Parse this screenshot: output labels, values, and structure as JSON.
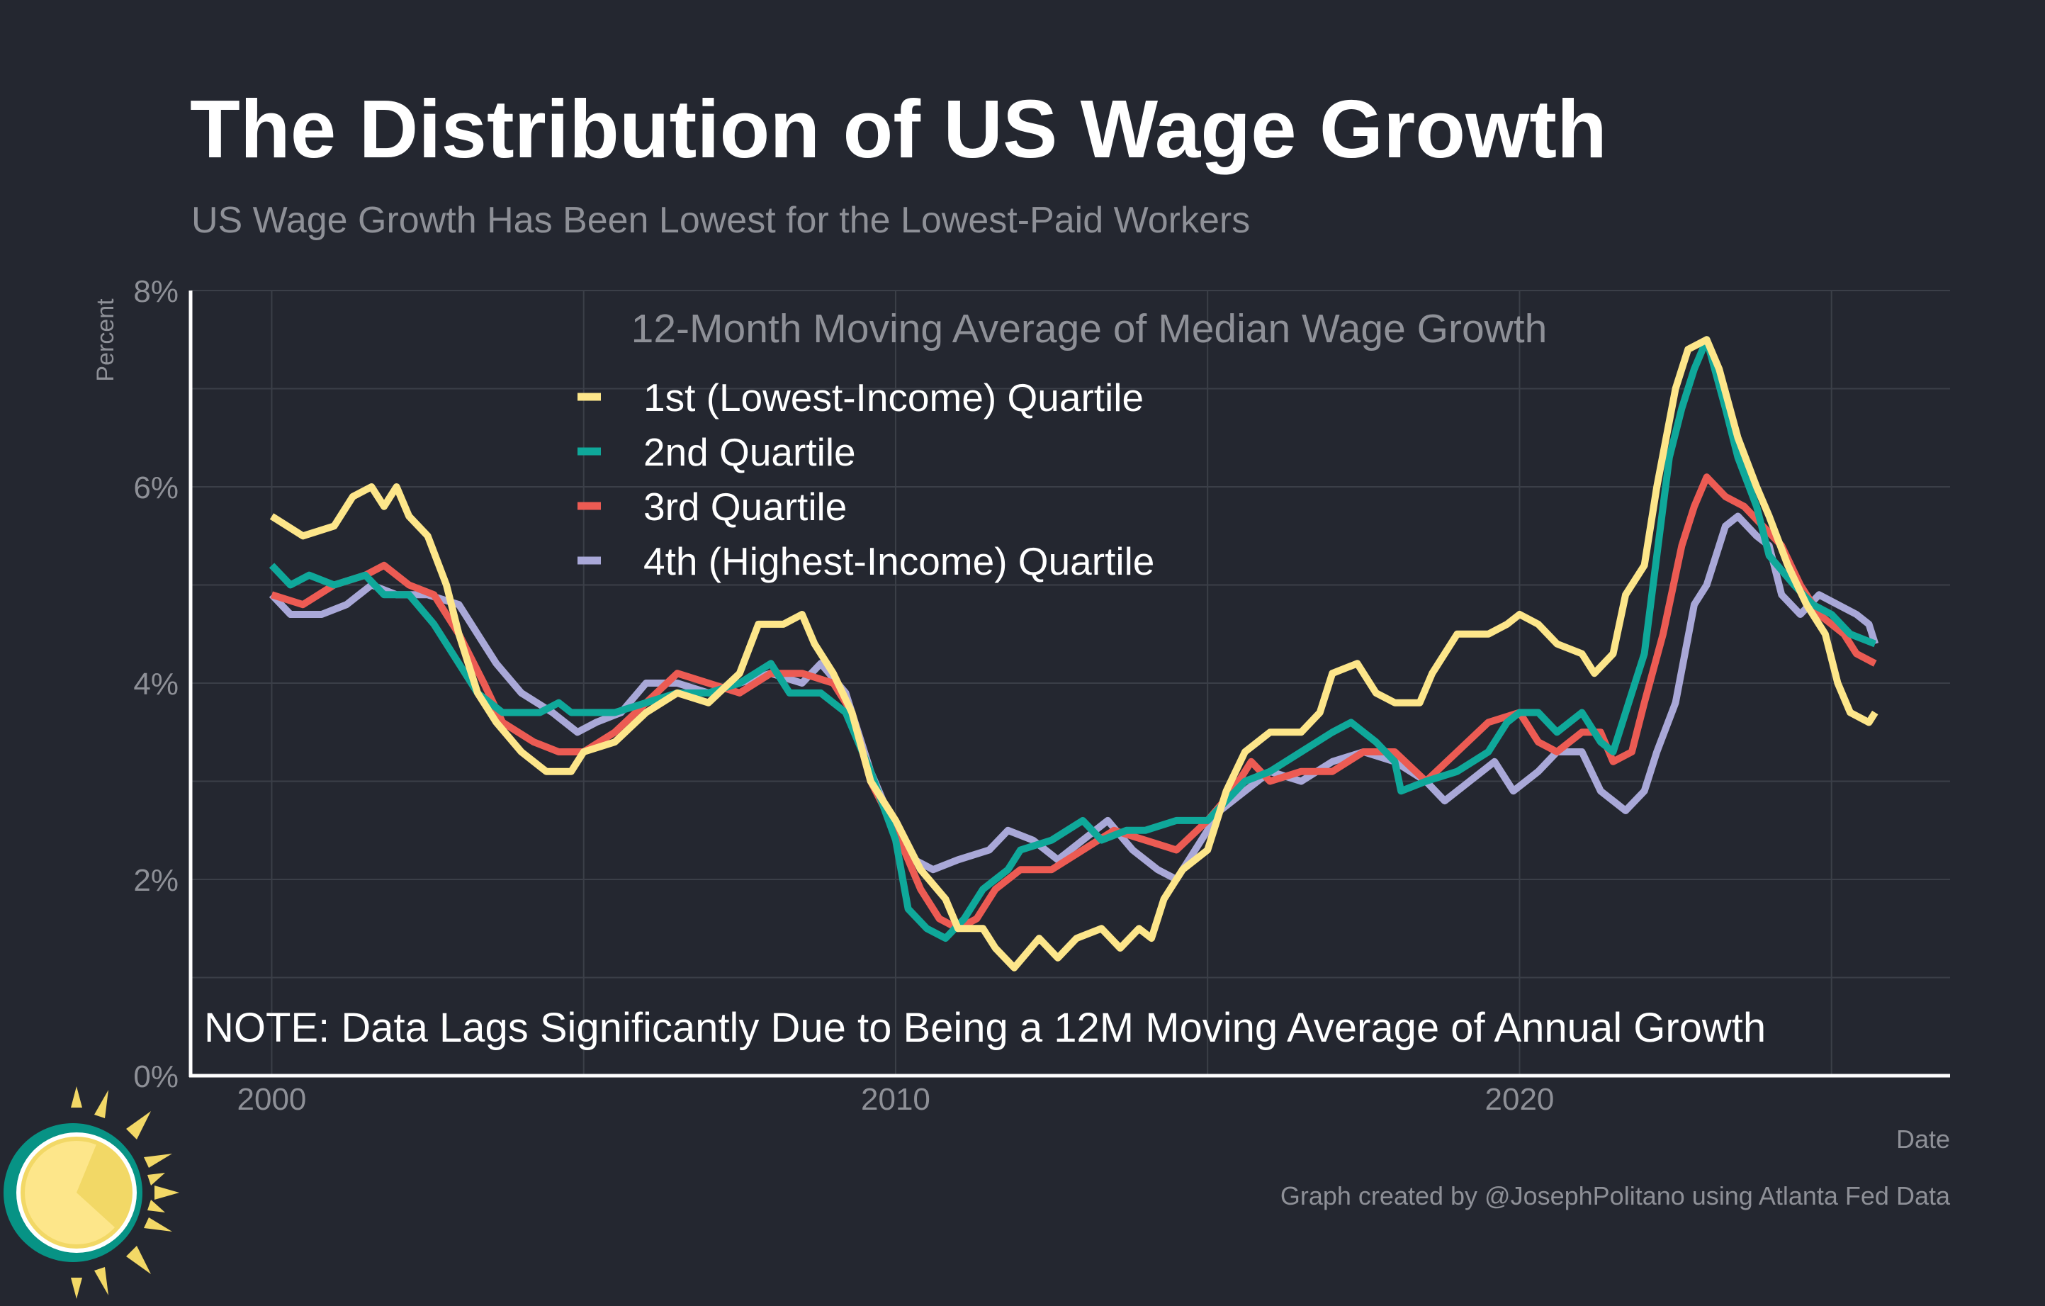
{
  "header": {
    "title": "The Distribution of US Wage Growth",
    "subtitle": "US Wage Growth Has Been Lowest for the Lowest-Paid Workers"
  },
  "footer": {
    "credit": "Graph created by @JosephPolitano using Atlanta Fed Data"
  },
  "colors": {
    "background": "#242730",
    "grid": "#3b3f48",
    "axis": "#ffffff",
    "muted_text": "#8e9097"
  },
  "chart_data": {
    "type": "line",
    "title": "12-Month Moving Average of Median Wage Growth",
    "xlabel": "Date",
    "ylabel": "Percent",
    "xlim": [
      1998.7,
      2026.9
    ],
    "ylim": [
      0,
      8
    ],
    "x_ticks": [
      {
        "value": 2000,
        "label": "2000"
      },
      {
        "value": 2010,
        "label": "2010"
      },
      {
        "value": 2020,
        "label": "2020"
      }
    ],
    "y_ticks": [
      {
        "value": 0,
        "label": "0%"
      },
      {
        "value": 2,
        "label": "2%"
      },
      {
        "value": 4,
        "label": "4%"
      },
      {
        "value": 6,
        "label": "6%"
      },
      {
        "value": 8,
        "label": "8%"
      }
    ],
    "grid": true,
    "legend_position": "top-center",
    "annotation": "NOTE: Data Lags Significantly Due to Being a 12M Moving Average of Annual Growth",
    "series": [
      {
        "name": "1st (Lowest-Income) Quartile",
        "color": "#fde68a",
        "x": [
          2000,
          2000.5,
          2001,
          2001.3,
          2001.6,
          2001.8,
          2002.0,
          2002.2,
          2002.5,
          2002.8,
          2003.0,
          2003.3,
          2003.6,
          2004,
          2004.4,
          2004.8,
          2005,
          2005.5,
          2006,
          2006.5,
          2007,
          2007.5,
          2007.8,
          2008.2,
          2008.5,
          2008.7,
          2009,
          2009.3,
          2009.6,
          2010,
          2010.4,
          2010.8,
          2011,
          2011.4,
          2011.6,
          2011.9,
          2012.3,
          2012.6,
          2012.9,
          2013.3,
          2013.6,
          2013.9,
          2014.1,
          2014.3,
          2014.6,
          2015,
          2015.3,
          2015.6,
          2016,
          2016.5,
          2016.8,
          2017,
          2017.4,
          2017.7,
          2018,
          2018.4,
          2018.6,
          2019,
          2019.5,
          2019.8,
          2020,
          2020.3,
          2020.6,
          2021,
          2021.2,
          2021.5,
          2021.7,
          2022,
          2022.2,
          2022.5,
          2022.7,
          2023,
          2023.2,
          2023.5,
          2023.8,
          2024,
          2024.3,
          2024.6,
          2024.9,
          2025.1,
          2025.3,
          2025.6,
          2025.7
        ],
        "y": [
          5.7,
          5.5,
          5.6,
          5.9,
          6.0,
          5.8,
          6.0,
          5.7,
          5.5,
          5.0,
          4.5,
          3.9,
          3.6,
          3.3,
          3.1,
          3.1,
          3.3,
          3.4,
          3.7,
          3.9,
          3.8,
          4.1,
          4.6,
          4.6,
          4.7,
          4.4,
          4.1,
          3.7,
          3.0,
          2.6,
          2.1,
          1.8,
          1.5,
          1.5,
          1.3,
          1.1,
          1.4,
          1.2,
          1.4,
          1.5,
          1.3,
          1.5,
          1.4,
          1.8,
          2.1,
          2.3,
          2.9,
          3.3,
          3.5,
          3.5,
          3.7,
          4.1,
          4.2,
          3.9,
          3.8,
          3.8,
          4.1,
          4.5,
          4.5,
          4.6,
          4.7,
          4.6,
          4.4,
          4.3,
          4.1,
          4.3,
          4.9,
          5.2,
          6.0,
          7.0,
          7.4,
          7.5,
          7.2,
          6.5,
          6.0,
          5.7,
          5.2,
          4.8,
          4.5,
          4.0,
          3.7,
          3.6,
          3.7
        ]
      },
      {
        "name": "2nd Quartile",
        "color": "#0fa89a",
        "x": [
          2000,
          2000.3,
          2000.6,
          2001,
          2001.5,
          2001.8,
          2002.2,
          2002.6,
          2003,
          2003.3,
          2003.7,
          2004.3,
          2004.6,
          2004.8,
          2005.5,
          2006,
          2006.5,
          2007,
          2007.5,
          2008,
          2008.3,
          2008.8,
          2009.2,
          2009.6,
          2010,
          2010.2,
          2010.5,
          2010.8,
          2011.1,
          2011.4,
          2011.8,
          2012,
          2012.5,
          2013,
          2013.3,
          2013.7,
          2014,
          2014.5,
          2015,
          2015.3,
          2015.6,
          2016,
          2016.5,
          2017,
          2017.3,
          2017.7,
          2018,
          2018.1,
          2018.5,
          2019,
          2019.5,
          2019.8,
          2020,
          2020.3,
          2020.6,
          2021,
          2021.3,
          2021.5,
          2021.8,
          2022,
          2022.2,
          2022.4,
          2022.6,
          2022.8,
          2023,
          2023.3,
          2023.5,
          2023.8,
          2024,
          2024.4,
          2024.7,
          2025,
          2025.3,
          2025.7
        ],
        "y": [
          5.2,
          5.0,
          5.1,
          5.0,
          5.1,
          4.9,
          4.9,
          4.6,
          4.2,
          3.9,
          3.7,
          3.7,
          3.8,
          3.7,
          3.7,
          3.8,
          3.9,
          3.9,
          4.0,
          4.2,
          3.9,
          3.9,
          3.7,
          3.1,
          2.4,
          1.7,
          1.5,
          1.4,
          1.6,
          1.9,
          2.1,
          2.3,
          2.4,
          2.6,
          2.4,
          2.5,
          2.5,
          2.6,
          2.6,
          2.8,
          3.0,
          3.1,
          3.3,
          3.5,
          3.6,
          3.4,
          3.2,
          2.9,
          3.0,
          3.1,
          3.3,
          3.6,
          3.7,
          3.7,
          3.5,
          3.7,
          3.4,
          3.3,
          3.9,
          4.3,
          5.3,
          6.3,
          6.8,
          7.2,
          7.5,
          6.8,
          6.3,
          5.8,
          5.3,
          5.0,
          4.8,
          4.7,
          4.5,
          4.4
        ]
      },
      {
        "name": "3rd Quartile",
        "color": "#ec5b53",
        "x": [
          2000,
          2000.5,
          2001,
          2001.5,
          2001.8,
          2002.2,
          2002.6,
          2003,
          2003.4,
          2003.7,
          2004.2,
          2004.6,
          2005,
          2005.5,
          2006,
          2006.5,
          2007,
          2007.5,
          2008,
          2008.5,
          2009,
          2009.3,
          2009.6,
          2010,
          2010.4,
          2010.7,
          2011,
          2011.3,
          2011.6,
          2012,
          2012.5,
          2013,
          2013.5,
          2014,
          2014.5,
          2015,
          2015.4,
          2015.7,
          2016,
          2016.5,
          2017,
          2017.5,
          2018,
          2018.5,
          2019,
          2019.5,
          2020,
          2020.3,
          2020.6,
          2021,
          2021.3,
          2021.5,
          2021.8,
          2022,
          2022.3,
          2022.6,
          2022.8,
          2023,
          2023.3,
          2023.6,
          2023.9,
          2024.2,
          2024.5,
          2024.8,
          2025.2,
          2025.4,
          2025.7
        ],
        "y": [
          4.9,
          4.8,
          5.0,
          5.1,
          5.2,
          5.0,
          4.9,
          4.5,
          4.0,
          3.6,
          3.4,
          3.3,
          3.3,
          3.5,
          3.8,
          4.1,
          4.0,
          3.9,
          4.1,
          4.1,
          4.0,
          3.7,
          3.0,
          2.5,
          1.9,
          1.6,
          1.5,
          1.6,
          1.9,
          2.1,
          2.1,
          2.3,
          2.5,
          2.4,
          2.3,
          2.6,
          2.9,
          3.2,
          3.0,
          3.1,
          3.1,
          3.3,
          3.3,
          3.0,
          3.3,
          3.6,
          3.7,
          3.4,
          3.3,
          3.5,
          3.5,
          3.2,
          3.3,
          3.8,
          4.5,
          5.4,
          5.8,
          6.1,
          5.9,
          5.8,
          5.6,
          5.4,
          5.0,
          4.7,
          4.5,
          4.3,
          4.2
        ]
      },
      {
        "name": "4th (Highest-Income) Quartile",
        "color": "#a9a8d8",
        "x": [
          2000,
          2000.3,
          2000.8,
          2001.2,
          2001.6,
          2002,
          2002.5,
          2003,
          2003.3,
          2003.6,
          2004,
          2004.5,
          2004.9,
          2005.2,
          2005.6,
          2006,
          2006.5,
          2007,
          2007.5,
          2008,
          2008.5,
          2008.8,
          2009.2,
          2009.6,
          2010,
          2010.3,
          2010.6,
          2011,
          2011.5,
          2011.8,
          2012.2,
          2012.6,
          2013,
          2013.4,
          2013.8,
          2014.2,
          2014.5,
          2014.8,
          2015.2,
          2015.6,
          2016,
          2016.5,
          2017,
          2017.5,
          2018,
          2018.5,
          2018.8,
          2019.2,
          2019.6,
          2019.9,
          2020.3,
          2020.6,
          2021,
          2021.3,
          2021.7,
          2022,
          2022.2,
          2022.5,
          2022.8,
          2023,
          2023.3,
          2023.5,
          2023.8,
          2024,
          2024.2,
          2024.5,
          2024.8,
          2025.1,
          2025.4,
          2025.6,
          2025.7
        ],
        "y": [
          4.9,
          4.7,
          4.7,
          4.8,
          5.0,
          4.9,
          4.9,
          4.8,
          4.5,
          4.2,
          3.9,
          3.7,
          3.5,
          3.6,
          3.7,
          4.0,
          4.0,
          3.9,
          4.0,
          4.1,
          4.0,
          4.2,
          3.9,
          3.1,
          2.5,
          2.2,
          2.1,
          2.2,
          2.3,
          2.5,
          2.4,
          2.2,
          2.4,
          2.6,
          2.3,
          2.1,
          2.0,
          2.3,
          2.7,
          2.9,
          3.1,
          3.0,
          3.2,
          3.3,
          3.2,
          3.0,
          2.8,
          3.0,
          3.2,
          2.9,
          3.1,
          3.3,
          3.3,
          2.9,
          2.7,
          2.9,
          3.3,
          3.8,
          4.8,
          5.0,
          5.6,
          5.7,
          5.5,
          5.4,
          4.9,
          4.7,
          4.9,
          4.8,
          4.7,
          4.6,
          4.4
        ]
      }
    ]
  }
}
